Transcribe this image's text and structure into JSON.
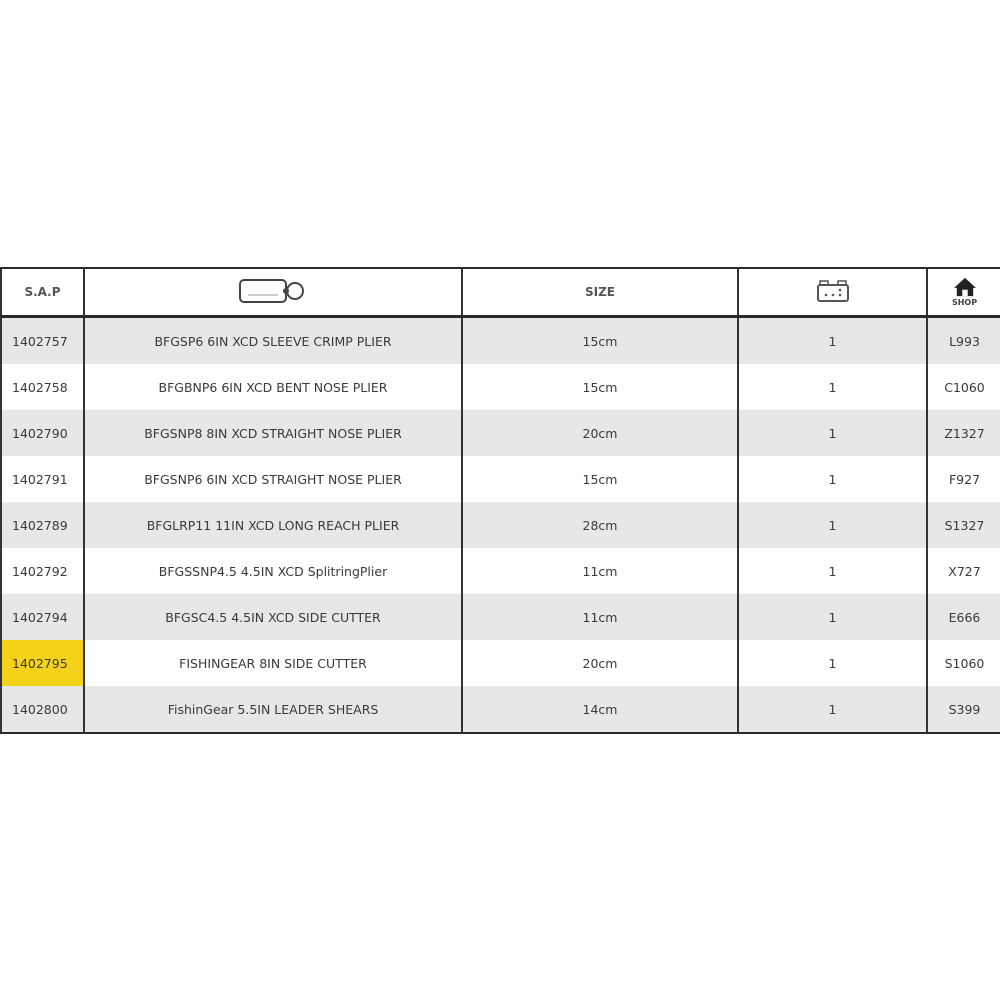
{
  "headers": {
    "sap": "S.A.P",
    "description_icon": "tag-icon",
    "size": "SIZE",
    "quantity_icon": "box-icon",
    "shop_icon": "home-icon",
    "shop_label": "SHOP"
  },
  "highlight_color": "#f5d21a",
  "rows": [
    {
      "sap": "1402757",
      "description": "BFGSP6 6IN XCD SLEEVE CRIMP PLIER",
      "size": "15cm",
      "qty": "1",
      "shop": "L993"
    },
    {
      "sap": "1402758",
      "description": "BFGBNP6 6IN XCD BENT NOSE PLIER",
      "size": "15cm",
      "qty": "1",
      "shop": "C1060"
    },
    {
      "sap": "1402790",
      "description": "BFGSNP8 8IN XCD STRAIGHT NOSE PLIER",
      "size": "20cm",
      "qty": "1",
      "shop": "Z1327"
    },
    {
      "sap": "1402791",
      "description": "BFGSNP6 6IN XCD STRAIGHT NOSE PLIER",
      "size": "15cm",
      "qty": "1",
      "shop": "F927"
    },
    {
      "sap": "1402789",
      "description": "BFGLRP11 11IN XCD LONG REACH PLIER",
      "size": "28cm",
      "qty": "1",
      "shop": "S1327"
    },
    {
      "sap": "1402792",
      "description": "BFGSSNP4.5  4.5IN XCD SplitringPlier",
      "size": "11cm",
      "qty": "1",
      "shop": "X727"
    },
    {
      "sap": "1402794",
      "description": "BFGSC4.5 4.5IN XCD SIDE CUTTER",
      "size": "11cm",
      "qty": "1",
      "shop": "E666"
    },
    {
      "sap": "1402795",
      "description": "FISHINGEAR 8IN SIDE CUTTER",
      "size": "20cm",
      "qty": "1",
      "shop": "S1060",
      "highlighted": true
    },
    {
      "sap": "1402800",
      "description": "FishinGear 5.5IN LEADER SHEARS",
      "size": "14cm",
      "qty": "1",
      "shop": "S399"
    }
  ]
}
